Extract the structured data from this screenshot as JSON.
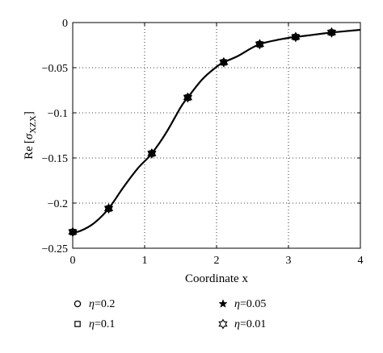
{
  "chart_data": {
    "type": "line",
    "xlabel": "Coordinate x",
    "ylabel_main": "Re",
    "ylabel_sym": "σ",
    "ylabel_sub": "XZX",
    "xlim": [
      0,
      4
    ],
    "ylim": [
      -0.25,
      0
    ],
    "grid": true,
    "grid_style": "dotted",
    "legend_position": "below",
    "x_ticks": [
      0,
      1,
      2,
      3,
      4
    ],
    "x_tick_labels": [
      "0",
      "1",
      "2",
      "3",
      "4"
    ],
    "y_ticks": [
      0,
      -0.05,
      -0.1,
      -0.15,
      -0.2,
      -0.25
    ],
    "y_tick_labels": [
      "0",
      "−0.05",
      "−0.1",
      "−0.15",
      "−0.2",
      "−0.25"
    ],
    "curve": {
      "x": [
        0,
        0.1,
        0.3,
        0.5,
        0.7,
        0.9,
        1.1,
        1.3,
        1.5,
        1.6,
        1.8,
        2.0,
        2.1,
        2.3,
        2.6,
        3.0,
        3.1,
        3.5,
        3.6,
        4.0
      ],
      "y": [
        -0.232,
        -0.231,
        -0.222,
        -0.206,
        -0.183,
        -0.162,
        -0.145,
        -0.122,
        -0.094,
        -0.083,
        -0.063,
        -0.049,
        -0.044,
        -0.037,
        -0.024,
        -0.017,
        -0.016,
        -0.012,
        -0.011,
        -0.008
      ]
    },
    "series": [
      {
        "name_eta": "η",
        "name_value": "=0.2",
        "marker": "circle",
        "x": [
          0,
          0.5,
          1.1,
          1.6,
          2.1,
          2.6,
          3.1,
          3.6
        ],
        "y": [
          -0.232,
          -0.206,
          -0.145,
          -0.083,
          -0.044,
          -0.024,
          -0.016,
          -0.011
        ]
      },
      {
        "name_eta": "η",
        "name_value": "=0.1",
        "marker": "square",
        "x": [
          0,
          0.5,
          1.1,
          1.6,
          2.1,
          2.6,
          3.1,
          3.6
        ],
        "y": [
          -0.232,
          -0.206,
          -0.145,
          -0.083,
          -0.044,
          -0.024,
          -0.016,
          -0.011
        ]
      },
      {
        "name_eta": "η",
        "name_value": "=0.05",
        "marker": "star-filled",
        "x": [
          0,
          0.5,
          1.1,
          1.6,
          2.1,
          2.6,
          3.1,
          3.6
        ],
        "y": [
          -0.232,
          -0.206,
          -0.145,
          -0.083,
          -0.044,
          -0.024,
          -0.016,
          -0.011
        ]
      },
      {
        "name_eta": "η",
        "name_value": "=0.01",
        "marker": "hexagram",
        "x": [
          0,
          0.5,
          1.1,
          1.6,
          2.1,
          2.6,
          3.1,
          3.6
        ],
        "y": [
          -0.232,
          -0.206,
          -0.145,
          -0.083,
          -0.044,
          -0.024,
          -0.016,
          -0.011
        ]
      }
    ],
    "colors": {
      "line": "#000000",
      "grid": "#000000",
      "background": "#ffffff"
    }
  }
}
